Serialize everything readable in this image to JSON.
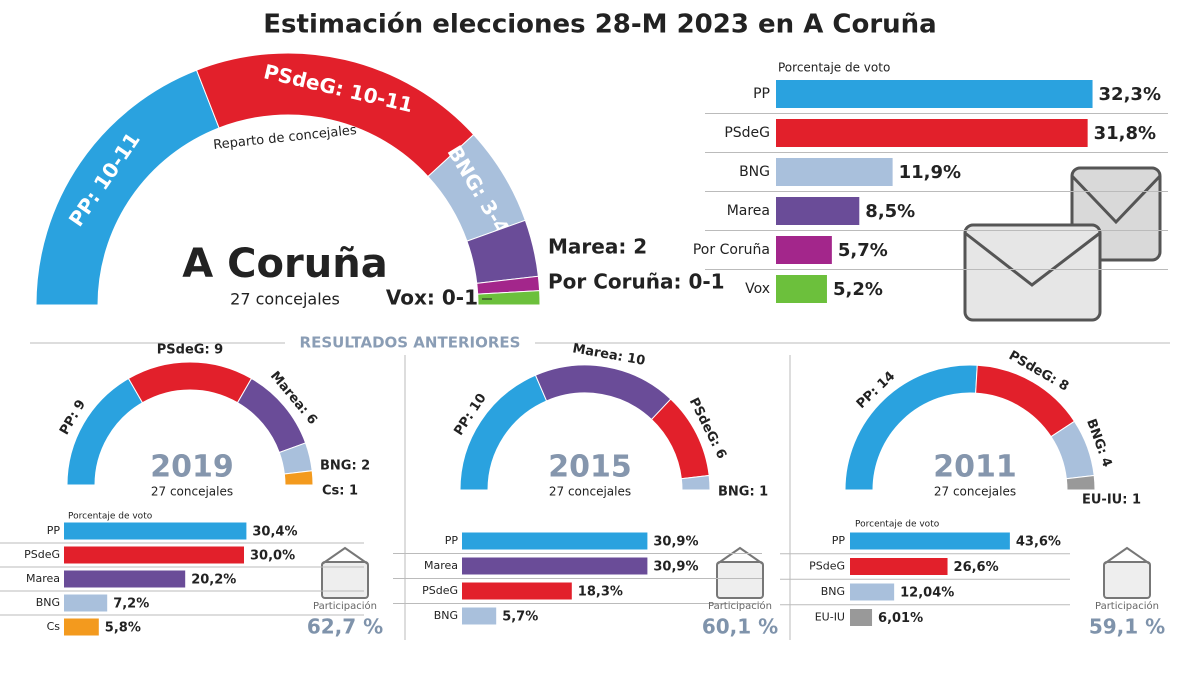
{
  "title": "Estimación elecciones 28-M 2023 en A Coruña",
  "section_label": "RESULTADOS ANTERIORES",
  "chart_data": [
    {
      "type": "seat-range-arc",
      "title": "A Coruña",
      "subtitle": "27 concejales",
      "inner_label": "Reparto de concejales",
      "seats_min": [
        10,
        10,
        3,
        2,
        0,
        0
      ],
      "seats_max": [
        11,
        11,
        4,
        2,
        1,
        1
      ],
      "value_labels": [
        "PP: 10-11",
        "PSdeG: 10-11",
        "BNG: 3-4",
        "Marea: 2",
        "Por Coruña: 0-1",
        "Vox: 0-1"
      ],
      "colors": [
        "#2aa2df",
        "#e2202b",
        "#a9c0dc",
        "#6a4c98",
        "#a3268b",
        "#6cc03c"
      ]
    },
    {
      "type": "bar",
      "title": "Porcentaje de voto",
      "categories": [
        "PP",
        "PSdeG",
        "BNG",
        "Marea",
        "Por Coruña",
        "Vox"
      ],
      "values": [
        32.3,
        31.8,
        11.9,
        8.5,
        5.7,
        5.2
      ],
      "value_labels": [
        "32,3%",
        "31,8%",
        "11,9%",
        "8,5%",
        "5,7%",
        "5,2%"
      ],
      "colors": [
        "#2aa2df",
        "#e2202b",
        "#a9c0dc",
        "#6a4c98",
        "#a3268b",
        "#6cc03c"
      ],
      "xlim": [
        0,
        40
      ]
    },
    {
      "type": "seat-arc",
      "title": "2019",
      "subtitle": "27 concejales",
      "values": [
        9,
        9,
        6,
        2,
        1
      ],
      "value_labels": [
        "PP: 9",
        "PSdeG: 9",
        "Marea: 6",
        "BNG: 2",
        "Cs: 1"
      ],
      "colors": [
        "#2aa2df",
        "#e2202b",
        "#6a4c98",
        "#a9c0dc",
        "#f39a1e"
      ]
    },
    {
      "type": "bar",
      "title": "Porcentaje de voto",
      "categories": [
        "PP",
        "PSdeG",
        "Marea",
        "BNG",
        "Cs"
      ],
      "values": [
        30.4,
        30.0,
        20.2,
        7.2,
        5.8
      ],
      "value_labels": [
        "30,4%",
        "30,0%",
        "20,2%",
        "7,2%",
        "5,8%"
      ],
      "colors": [
        "#2aa2df",
        "#e2202b",
        "#6a4c98",
        "#a9c0dc",
        "#f39a1e"
      ],
      "xlim": [
        0,
        50
      ]
    },
    {
      "type": "stat",
      "title": "Participación",
      "value": 62.7,
      "value_label": "62,7 %"
    },
    {
      "type": "seat-arc",
      "title": "2015",
      "subtitle": "27 concejales",
      "values": [
        10,
        10,
        6,
        1
      ],
      "value_labels": [
        "PP: 10",
        "Marea: 10",
        "PSdeG: 6",
        "BNG: 1"
      ],
      "colors": [
        "#2aa2df",
        "#6a4c98",
        "#e2202b",
        "#a9c0dc"
      ]
    },
    {
      "type": "bar",
      "categories": [
        "PP",
        "Marea",
        "PSdeG",
        "BNG"
      ],
      "values": [
        30.9,
        30.9,
        18.3,
        5.7
      ],
      "value_labels": [
        "30,9%",
        "30,9%",
        "18,3%",
        "5,7%"
      ],
      "colors": [
        "#2aa2df",
        "#6a4c98",
        "#e2202b",
        "#a9c0dc"
      ],
      "xlim": [
        0,
        50
      ]
    },
    {
      "type": "stat",
      "title": "Participación",
      "value": 60.1,
      "value_label": "60,1 %"
    },
    {
      "type": "seat-arc",
      "title": "2011",
      "subtitle": "27 concejales",
      "values": [
        14,
        8,
        4,
        1
      ],
      "value_labels": [
        "PP: 14",
        "PSdeG: 8",
        "BNG: 4",
        "EU-IU: 1"
      ],
      "colors": [
        "#2aa2df",
        "#e2202b",
        "#a9c0dc",
        "#999999"
      ]
    },
    {
      "type": "bar",
      "title": "Porcentaje de voto",
      "categories": [
        "PP",
        "PSdeG",
        "BNG",
        "EU-IU"
      ],
      "values": [
        43.6,
        26.6,
        12.04,
        6.01
      ],
      "value_labels": [
        "43,6%",
        "26,6%",
        "12,04%",
        "6,01%"
      ],
      "colors": [
        "#2aa2df",
        "#e2202b",
        "#a9c0dc",
        "#999999"
      ],
      "xlim": [
        0,
        60
      ]
    },
    {
      "type": "stat",
      "title": "Participación",
      "value": 59.1,
      "value_label": "59,1 %"
    }
  ]
}
